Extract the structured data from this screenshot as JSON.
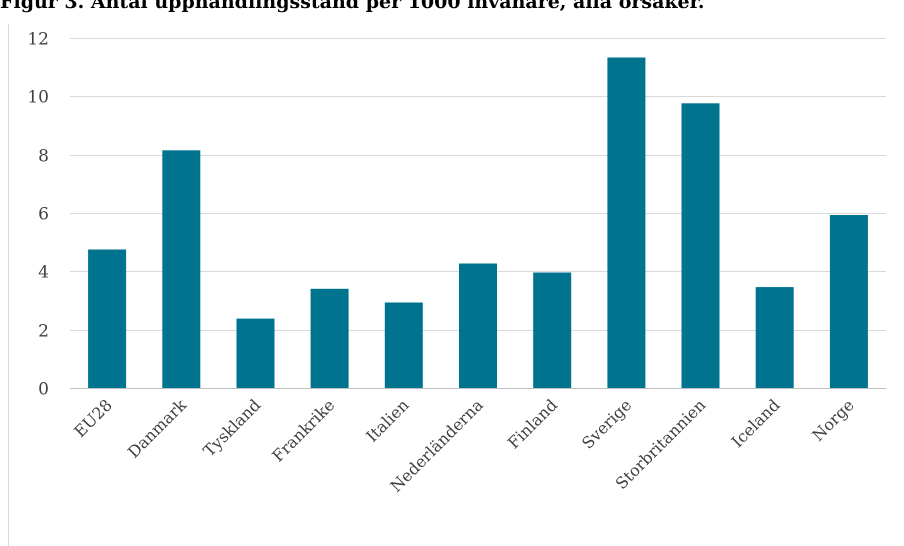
{
  "title": "Figur 3. Antal upphandlingsstand per 1000 invånare, alla orsaker.",
  "chart_data": {
    "type": "bar",
    "categories": [
      "EU28",
      "Danmark",
      "Tyskland",
      "Frankrike",
      "Italien",
      "Nederländerna",
      "Finland",
      "Sverige",
      "Storbritannien",
      "Iceland",
      "Norge"
    ],
    "series": [
      {
        "values": [
          4.75,
          8.15,
          2.38,
          3.4,
          2.93,
          4.27,
          3.96,
          11.33,
          9.76,
          3.46,
          5.93
        ]
      }
    ],
    "ylim": [
      0,
      12
    ],
    "yticks": [
      0,
      2,
      4,
      6,
      8,
      10,
      12
    ],
    "grid": true,
    "bar_color": "#00738f",
    "grid_color": "#d9d9d9"
  }
}
